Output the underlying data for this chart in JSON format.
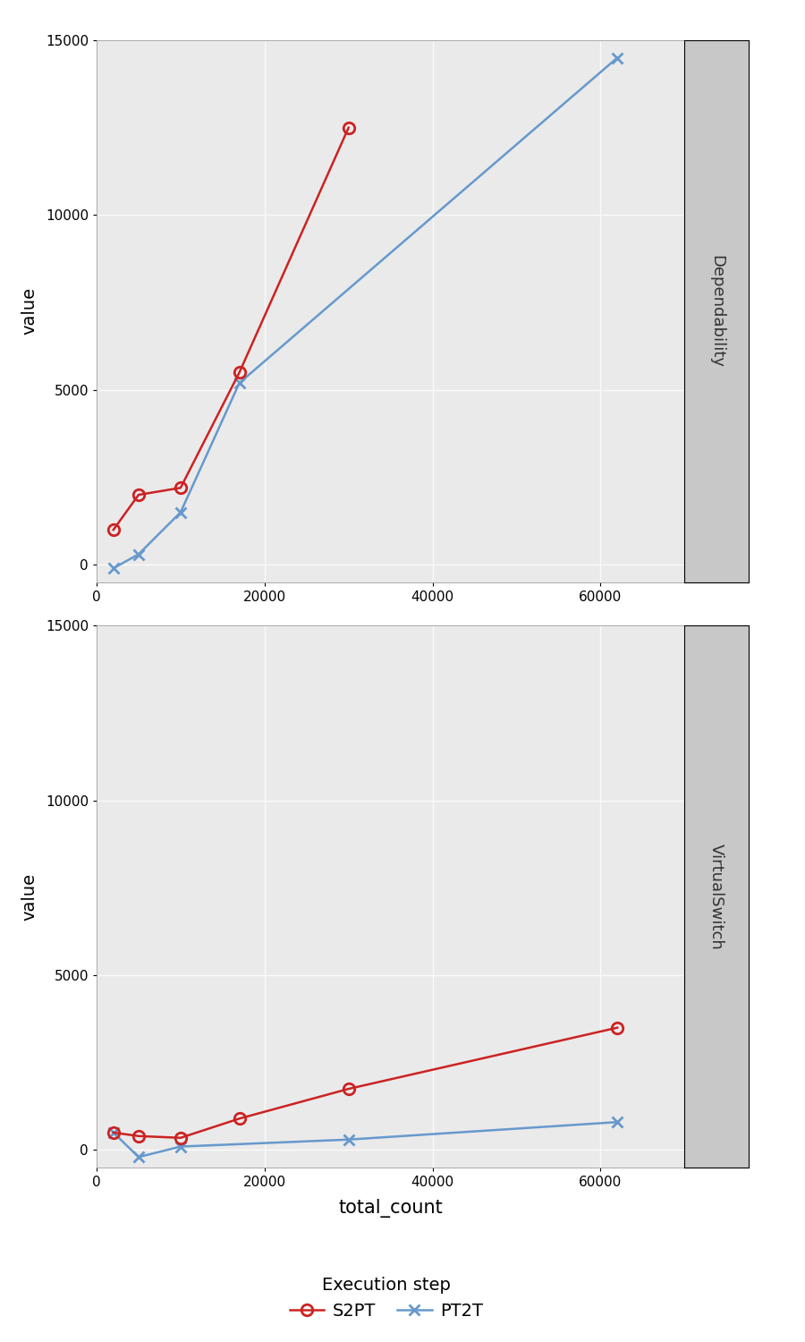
{
  "panels": [
    {
      "label": "Dependability",
      "S2PT_x": [
        2000,
        5000,
        10000,
        17000,
        30000
      ],
      "S2PT_y": [
        1000,
        2000,
        2200,
        5500,
        12500
      ],
      "PT2T_x": [
        2000,
        5000,
        10000,
        17000,
        62000
      ],
      "PT2T_y": [
        -100,
        300,
        1500,
        5200,
        14500
      ]
    },
    {
      "label": "VirtualSwitch",
      "S2PT_x": [
        2000,
        5000,
        10000,
        17000,
        30000,
        62000
      ],
      "S2PT_y": [
        500,
        400,
        350,
        900,
        1750,
        3500
      ],
      "PT2T_x": [
        2000,
        5000,
        10000,
        30000,
        62000
      ],
      "PT2T_y": [
        500,
        -200,
        100,
        300,
        800
      ]
    }
  ],
  "ylim": [
    -500,
    15000
  ],
  "yticks": [
    0,
    5000,
    10000,
    15000
  ],
  "xlim": [
    0,
    70000
  ],
  "xticks": [
    0,
    20000,
    40000,
    60000
  ],
  "xlabel": "total_count",
  "ylabel": "value",
  "s2pt_color": "#CC2222",
  "pt2t_color": "#6699CC",
  "s2pt_label": "S2PT",
  "pt2t_label": "PT2T",
  "legend_title": "Execution step",
  "background_color": "#EAEAEA",
  "strip_bg": "#C8C8C8",
  "grid_color": "#FAFAFA",
  "linewidth": 1.8,
  "marker_size": 9,
  "title_fontsize": 13,
  "axis_fontsize": 14,
  "tick_fontsize": 11,
  "legend_fontsize": 14
}
